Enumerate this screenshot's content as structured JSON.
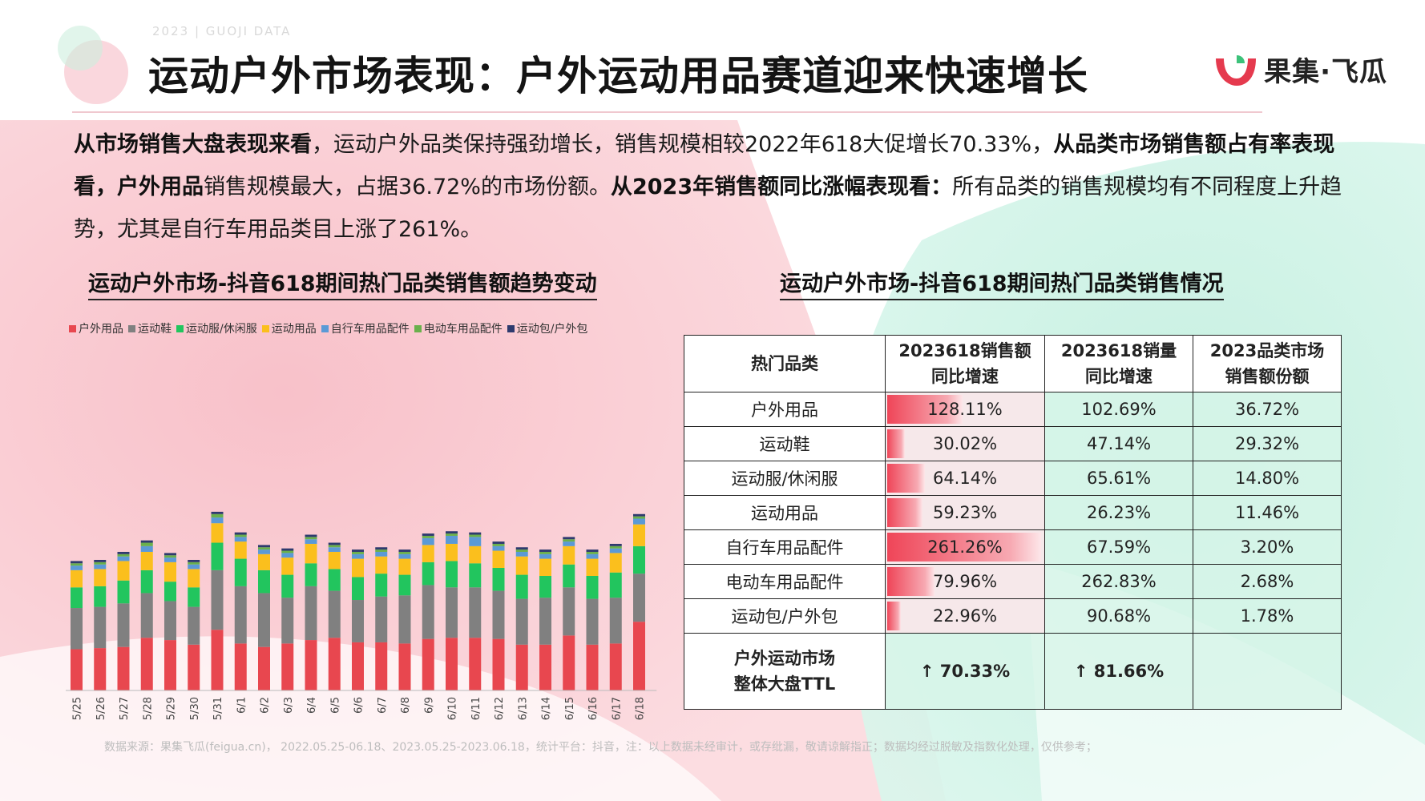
{
  "header": {
    "topline": "2023 | GUOJI DATA",
    "title": "运动户外市场表现：户外运动用品赛道迎来快速增长",
    "logo_text": "果集·飞瓜"
  },
  "intro": {
    "p1_bold": "从市场销售大盘表现来看",
    "p1": "，运动户外品类保持强劲增长，销售规模相较2022年618大促增长70.33%，",
    "p2_bold": "从品类市场销售额占有率表现看，户外用品",
    "p2": "销售规模最大，占据36.72%的市场份额。",
    "p3_bold": "从2023年销售额同比涨幅表现看：",
    "p3": "所有品类的销售规模均有不同程度上升趋势，尤其是自行车用品类目上涨了261%。"
  },
  "left_subtitle": "运动户外市场-抖音618期间热门品类销售额趋势变动",
  "right_subtitle": "运动户外市场-抖音618期间热门品类销售情况",
  "colors": {
    "户外用品": "#e8474f",
    "运动鞋": "#808080",
    "运动服/休闲服": "#22c55e",
    "运动用品": "#fbbf1d",
    "自行车用品配件": "#5b9ad6",
    "电动车用品配件": "#6ab04c",
    "运动包/户外包": "#2e3a6e"
  },
  "chart_data": {
    "type": "bar",
    "stacked": true,
    "title": "运动户外市场-抖音618期间热门品类销售额趋势变动",
    "legend_position": "top-left",
    "categories": [
      "5/25",
      "5/26",
      "5/27",
      "5/28",
      "5/29",
      "5/30",
      "5/31",
      "6/1",
      "6/2",
      "6/3",
      "6/4",
      "6/5",
      "6/6",
      "6/7",
      "6/8",
      "6/9",
      "6/10",
      "6/11",
      "6/12",
      "6/13",
      "6/14",
      "6/15",
      "6/16",
      "6/17",
      "6/18"
    ],
    "series": [
      {
        "name": "户外用品",
        "values": [
          36,
          37,
          38,
          46,
          44,
          40,
          53,
          41,
          38,
          41,
          44,
          46,
          42,
          42,
          41,
          45,
          46,
          46,
          45,
          40,
          40,
          48,
          40,
          41,
          60
        ]
      },
      {
        "name": "运动鞋",
        "values": [
          36,
          36,
          38,
          39,
          34,
          33,
          52,
          50,
          47,
          40,
          47,
          41,
          37,
          40,
          42,
          47,
          44,
          44,
          42,
          40,
          41,
          42,
          40,
          40,
          42
        ]
      },
      {
        "name": "运动服/休闲服",
        "values": [
          18,
          18,
          20,
          20,
          17,
          17,
          24,
          24,
          20,
          20,
          20,
          19,
          20,
          20,
          18,
          20,
          23,
          21,
          20,
          21,
          19,
          20,
          20,
          22,
          24
        ]
      },
      {
        "name": "运动用品",
        "values": [
          15,
          15,
          17,
          16,
          17,
          16,
          17,
          15,
          14,
          15,
          17,
          15,
          16,
          15,
          14,
          15,
          15,
          15,
          15,
          16,
          15,
          16,
          15,
          17,
          19
        ]
      },
      {
        "name": "自行车用品配件",
        "values": [
          4,
          4,
          4,
          5,
          4,
          4,
          5,
          4,
          4,
          4,
          4,
          4,
          4,
          4,
          4,
          6,
          7,
          8,
          4,
          4,
          4,
          4,
          4,
          4,
          5
        ]
      },
      {
        "name": "电动车用品配件",
        "values": [
          2,
          2,
          2,
          3,
          2,
          2,
          3,
          2,
          2,
          2,
          2,
          2,
          2,
          2,
          2,
          2,
          2,
          2,
          2,
          2,
          2,
          2,
          2,
          2,
          2
        ]
      },
      {
        "name": "运动包/户外包",
        "values": [
          2,
          2,
          2,
          2,
          2,
          2,
          2,
          2,
          2,
          2,
          2,
          2,
          2,
          2,
          2,
          2,
          2,
          2,
          2,
          2,
          2,
          2,
          2,
          2,
          2
        ]
      }
    ],
    "xlabel": "",
    "ylabel": ""
  },
  "table": {
    "headers": [
      "热门品类",
      "2023618销售额\n同比增速",
      "2023618销量\n同比增速",
      "2023品类市场\n销售额份额"
    ],
    "rows": [
      {
        "category": "户外用品",
        "sales_growth": "128.11%",
        "sales_growth_value": 128.11,
        "volume_growth": "102.69%",
        "share": "36.72%"
      },
      {
        "category": "运动鞋",
        "sales_growth": "30.02%",
        "sales_growth_value": 30.02,
        "volume_growth": "47.14%",
        "share": "29.32%"
      },
      {
        "category": "运动服/休闲服",
        "sales_growth": "64.14%",
        "sales_growth_value": 64.14,
        "volume_growth": "65.61%",
        "share": "14.80%"
      },
      {
        "category": "运动用品",
        "sales_growth": "59.23%",
        "sales_growth_value": 59.23,
        "volume_growth": "26.23%",
        "share": "11.46%"
      },
      {
        "category": "自行车用品配件",
        "sales_growth": "261.26%",
        "sales_growth_value": 261.26,
        "volume_growth": "67.59%",
        "share": "3.20%"
      },
      {
        "category": "电动车用品配件",
        "sales_growth": "79.96%",
        "sales_growth_value": 79.96,
        "volume_growth": "262.83%",
        "share": "2.68%"
      },
      {
        "category": "运动包/户外包",
        "sales_growth": "22.96%",
        "sales_growth_value": 22.96,
        "volume_growth": "90.68%",
        "share": "1.78%"
      }
    ],
    "total": {
      "label": "户外运动市场\n整体大盘TTL",
      "sales_growth": "↑ 70.33%",
      "volume_growth": "↑ 81.66%",
      "share": ""
    }
  },
  "source": "数据来源：果集飞瓜(feigua.cn)，  2022.05.25-06.18、2023.05.25-2023.06.18，统计平台：抖音，注：以上数据未经审计，或存纰漏，敬请谅解指正；数据均经过脱敏及指数化处理，仅供参考；"
}
